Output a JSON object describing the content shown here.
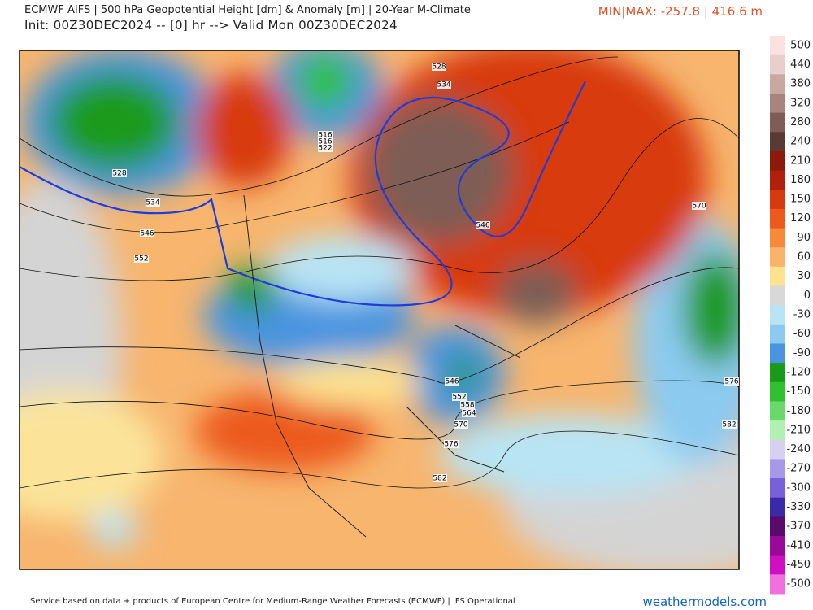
{
  "header": {
    "title": "ECMWF AIFS | 500 hPa Geopotential Height [dm] & Anomaly [m] | 20-Year M-Climate",
    "init": "Init: 00Z30DEC2024 -- [0] hr --> Valid Mon 00Z30DEC2024",
    "minmax": "MIN|MAX: -257.8 | 416.6 m"
  },
  "contour_labels": [
    "528",
    "534",
    "546",
    "552",
    "516",
    "516",
    "522",
    "528",
    "534",
    "546",
    "570",
    "576",
    "546",
    "552",
    "558",
    "564",
    "570",
    "582",
    "576",
    "582"
  ],
  "colorbar": {
    "labels": [
      "500",
      "440",
      "380",
      "320",
      "280",
      "240",
      "210",
      "180",
      "150",
      "120",
      "90",
      "60",
      "30",
      "0",
      "-30",
      "-60",
      "-90",
      "-120",
      "-150",
      "-180",
      "-210",
      "-240",
      "-270",
      "-300",
      "-330",
      "-370",
      "-410",
      "-450",
      "-500"
    ],
    "colors": [
      "#fde0e0",
      "#e8cfcb",
      "#c9a8a0",
      "#a8857c",
      "#7d5d55",
      "#5a3b34",
      "#8b1a0a",
      "#b0200a",
      "#d83a10",
      "#ec5a1c",
      "#f58a3a",
      "#f9b46a",
      "#fde28f",
      "#d8d8d8",
      "#b8e4f4",
      "#8ccaf0",
      "#4a94e0",
      "#1a9a1a",
      "#30c030",
      "#6ad86a",
      "#b0f0b0",
      "#d8d0f0",
      "#a898e8",
      "#7860d8",
      "#3a2aa8",
      "#5a0a6a",
      "#9a0a9a",
      "#d010c0",
      "#f070e0"
    ]
  },
  "footer": {
    "credit": "Service based on data + products of European Centre for Medium-Range Weather Forecasts (ECMWF) | IFS Operational",
    "site": "weathermodels.com"
  }
}
